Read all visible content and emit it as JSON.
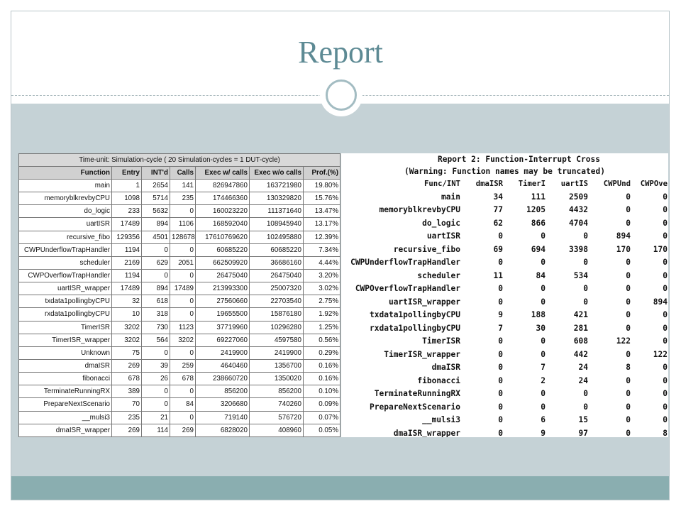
{
  "slide": {
    "title": "Report"
  },
  "left_table": {
    "caption": "Time-unit: Simulation-cycle ( 20 Simulation-cycles = 1 DUT-cycle)",
    "headers": [
      "Function",
      "Entry",
      "INT'd",
      "Calls",
      "Exec w/ calls",
      "Exec w/o calls",
      "Prof.(%)"
    ],
    "rows": [
      [
        "main",
        "1",
        "2654",
        "141",
        "826947860",
        "163721980",
        "19.80%"
      ],
      [
        "memoryblkrevbyCPU",
        "1098",
        "5714",
        "235",
        "174466360",
        "130329820",
        "15.76%"
      ],
      [
        "do_logic",
        "233",
        "5632",
        "0",
        "160023220",
        "111371640",
        "13.47%"
      ],
      [
        "uartISR",
        "17489",
        "894",
        "1106",
        "168592040",
        "108945940",
        "13.17%"
      ],
      [
        "recursive_fibo",
        "129356",
        "4501",
        "128678",
        "17610769620",
        "102495880",
        "12.39%"
      ],
      [
        "CWPUnderflowTrapHandler",
        "1194",
        "0",
        "0",
        "60685220",
        "60685220",
        "7.34%"
      ],
      [
        "scheduler",
        "2169",
        "629",
        "2051",
        "662509920",
        "36686160",
        "4.44%"
      ],
      [
        "CWPOverflowTrapHandler",
        "1194",
        "0",
        "0",
        "26475040",
        "26475040",
        "3.20%"
      ],
      [
        "uartISR_wrapper",
        "17489",
        "894",
        "17489",
        "213993300",
        "25007320",
        "3.02%"
      ],
      [
        "txdata1pollingbyCPU",
        "32",
        "618",
        "0",
        "27560660",
        "22703540",
        "2.75%"
      ],
      [
        "rxdata1pollingbyCPU",
        "10",
        "318",
        "0",
        "19655500",
        "15876180",
        "1.92%"
      ],
      [
        "TimerISR",
        "3202",
        "730",
        "1123",
        "37719960",
        "10296280",
        "1.25%"
      ],
      [
        "TimerISR_wrapper",
        "3202",
        "564",
        "3202",
        "69227060",
        "4597580",
        "0.56%"
      ],
      [
        "Unknown",
        "75",
        "0",
        "0",
        "2419900",
        "2419900",
        "0.29%"
      ],
      [
        "dmaISR",
        "269",
        "39",
        "259",
        "4640460",
        "1356700",
        "0.16%"
      ],
      [
        "fibonacci",
        "678",
        "26",
        "678",
        "238660720",
        "1350020",
        "0.16%"
      ],
      [
        "TerminateRunningRX",
        "389",
        "0",
        "0",
        "856200",
        "856200",
        "0.10%"
      ],
      [
        "PrepareNextScenario",
        "70",
        "0",
        "84",
        "3206680",
        "740260",
        "0.09%"
      ],
      [
        "__mulsi3",
        "235",
        "21",
        "0",
        "719140",
        "576720",
        "0.07%"
      ],
      [
        "dmaISR_wrapper",
        "269",
        "114",
        "269",
        "6828020",
        "408960",
        "0.05%"
      ]
    ]
  },
  "right_table": {
    "title1": "Report 2: Function-Interrupt Cross",
    "title2": "(Warning: Function names may be truncated)",
    "headers": [
      "Func/INT",
      "dmaISR",
      "TimerI",
      "uartIS",
      "CWPUnd",
      "CWPOve"
    ],
    "rows": [
      [
        "main",
        "34",
        "111",
        "2509",
        "0",
        "0"
      ],
      [
        "memoryblkrevbyCPU",
        "77",
        "1205",
        "4432",
        "0",
        "0"
      ],
      [
        "do_logic",
        "62",
        "866",
        "4704",
        "0",
        "0"
      ],
      [
        "uartISR",
        "0",
        "0",
        "0",
        "894",
        "0"
      ],
      [
        "recursive_fibo",
        "69",
        "694",
        "3398",
        "170",
        "170"
      ],
      [
        "CWPUnderflowTrapHandler",
        "0",
        "0",
        "0",
        "0",
        "0"
      ],
      [
        "scheduler",
        "11",
        "84",
        "534",
        "0",
        "0"
      ],
      [
        "CWPOverflowTrapHandler",
        "0",
        "0",
        "0",
        "0",
        "0"
      ],
      [
        "uartISR_wrapper",
        "0",
        "0",
        "0",
        "0",
        "894"
      ],
      [
        "txdata1pollingbyCPU",
        "9",
        "188",
        "421",
        "0",
        "0"
      ],
      [
        "rxdata1pollingbyCPU",
        "7",
        "30",
        "281",
        "0",
        "0"
      ],
      [
        "TimerISR",
        "0",
        "0",
        "608",
        "122",
        "0"
      ],
      [
        "TimerISR_wrapper",
        "0",
        "0",
        "442",
        "0",
        "122"
      ],
      [
        "dmaISR",
        "0",
        "7",
        "24",
        "8",
        "0"
      ],
      [
        "fibonacci",
        "0",
        "2",
        "24",
        "0",
        "0"
      ],
      [
        "TerminateRunningRX",
        "0",
        "0",
        "0",
        "0",
        "0"
      ],
      [
        "PrepareNextScenario",
        "0",
        "0",
        "0",
        "0",
        "0"
      ],
      [
        "__mulsi3",
        "0",
        "6",
        "15",
        "0",
        "0"
      ],
      [
        "dmaISR_wrapper",
        "0",
        "9",
        "97",
        "0",
        "8"
      ]
    ]
  }
}
